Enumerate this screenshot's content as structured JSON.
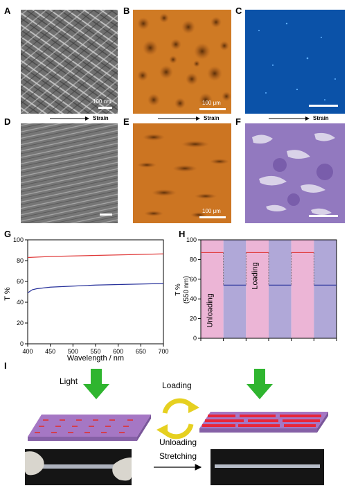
{
  "panel_labels": {
    "a": "A",
    "b": "B",
    "c": "C",
    "d": "D",
    "e": "E",
    "f": "F",
    "g": "G",
    "h": "H",
    "i": "I"
  },
  "scale_labels": {
    "a": "100 nm",
    "b": "100 μm",
    "e": "100 μm"
  },
  "strain_label": "Strain",
  "colors": {
    "sem": "#8a8a8a",
    "optical": "#c8701e",
    "fluor": "#0a4fa3",
    "stained": "#8a6db5",
    "line_loaded": "#e03a3a",
    "line_unloaded": "#26309a",
    "h_pink": "#ecb5d6",
    "h_blue": "#b0a8d8",
    "arrow_green": "#2fb52f",
    "sheet": "#a577c4"
  },
  "chart_data": [
    {
      "type": "line",
      "panel": "G",
      "xlabel": "Wavelength / nm",
      "ylabel": "T %",
      "xlim": [
        400,
        700
      ],
      "ylim": [
        0,
        100
      ],
      "xticks": [
        400,
        450,
        500,
        550,
        600,
        650,
        700
      ],
      "yticks": [
        0,
        20,
        40,
        60,
        80,
        100
      ],
      "series": [
        {
          "color": "#e03a3a",
          "x": [
            400,
            450,
            500,
            550,
            600,
            650,
            700
          ],
          "values": [
            83,
            84,
            84.5,
            85,
            85.5,
            86,
            86.5
          ]
        },
        {
          "color": "#26309a",
          "x": [
            400,
            410,
            420,
            450,
            500,
            550,
            600,
            650,
            700
          ],
          "values": [
            49,
            52,
            53,
            54.5,
            55.5,
            56.5,
            57,
            57.5,
            58
          ]
        }
      ]
    },
    {
      "type": "step",
      "panel": "H",
      "ylabel": "T %",
      "ylabel2": "(550 nm)",
      "ylim": [
        0,
        100
      ],
      "yticks": [
        0,
        20,
        40,
        60,
        80,
        100
      ],
      "cycles": [
        "loaded",
        "unloaded",
        "loaded",
        "unloaded",
        "loaded",
        "unloaded"
      ],
      "loaded_value": 87,
      "unloaded_value": 54,
      "annotations": [
        {
          "text": "Unloading",
          "band": 0
        },
        {
          "text": "Loading",
          "band": 2
        }
      ]
    }
  ],
  "schematic": {
    "light": "Light",
    "loading": "Loading",
    "unloading": "Unloading",
    "stretching": "Stretching"
  }
}
